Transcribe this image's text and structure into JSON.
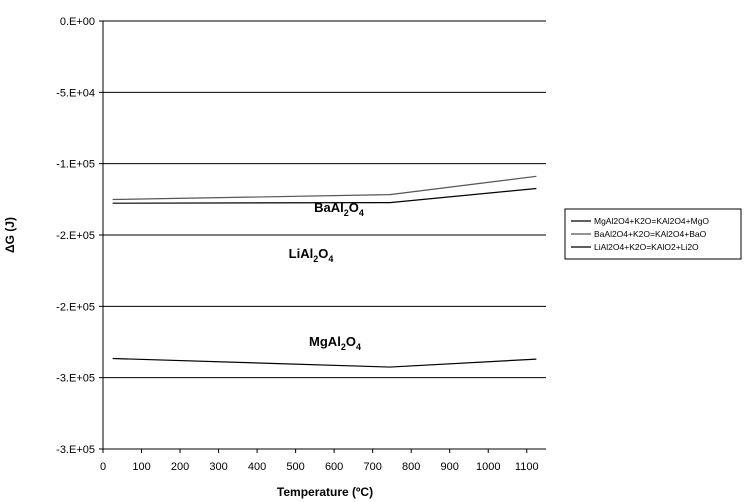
{
  "chart_data": {
    "type": "line",
    "xlabel": "Temperature (ºC)",
    "ylabel": "ΔG (J)",
    "x_ticks": [
      "0",
      "100",
      "200",
      "300",
      "400",
      "500",
      "600",
      "700",
      "800",
      "900",
      "1000",
      "1100"
    ],
    "y_ticks": [
      "0.E+00",
      "-5.E+04",
      "-1.E+05",
      "-2.E+05",
      "-2.E+05",
      "-3.E+05",
      "-3.E+05"
    ],
    "xlim": [
      0,
      1150
    ],
    "ylim": [
      -350000,
      0
    ],
    "grid": "horizontal",
    "legend_position": "right",
    "series": [
      {
        "name": "MgAl2O4+K2O=KAl2O4+MgO",
        "color": "#000000",
        "label_base": "MgAl",
        "label_sub1": "2",
        "label_mid": "O",
        "label_sub2": "4",
        "x": [
          25,
          745,
          1125
        ],
        "y": [
          -276000,
          -283000,
          -276500
        ]
      },
      {
        "name": "BaAl2O4+K2O=KAl2O4+BaO",
        "color": "#555555",
        "label_base": "BaAl",
        "label_sub1": "2",
        "label_mid": "O",
        "label_sub2": "4",
        "x": [
          25,
          745,
          1125
        ],
        "y": [
          -146000,
          -142000,
          -127000
        ]
      },
      {
        "name": "LiAl2O4+K2O=KAlO2+Li2O",
        "color": "#000000",
        "label_base": "LiAl",
        "label_sub1": "2",
        "label_mid": "O",
        "label_sub2": "4",
        "x": [
          25,
          745,
          1125
        ],
        "y": [
          -149000,
          -148500,
          -137000
        ]
      }
    ]
  }
}
